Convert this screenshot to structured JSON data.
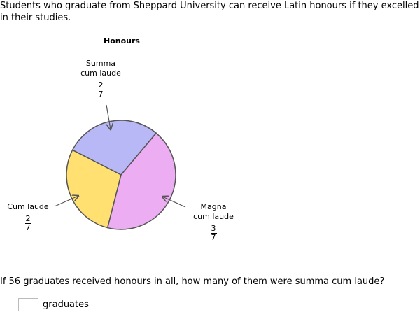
{
  "question": {
    "intro": "Students who graduate from Sheppard University can receive Latin honours if they excelled in their studies.",
    "prompt": "If 56 graduates received honours in all, how many of them were summa cum laude?",
    "answer_value": "",
    "answer_unit": "graduates"
  },
  "chart_data": {
    "type": "pie",
    "title": "Honours",
    "slices": [
      {
        "label": "Magna cum laude",
        "numerator": "3",
        "denominator": "7",
        "value": 0.4286,
        "color": "#ecadf2"
      },
      {
        "label": "Cum laude",
        "numerator": "2",
        "denominator": "7",
        "value": 0.2857,
        "color": "#ffe070"
      },
      {
        "label": "Summa cum laude",
        "numerator": "2",
        "denominator": "7",
        "value": 0.2857,
        "color": "#b8b8f7"
      }
    ]
  }
}
